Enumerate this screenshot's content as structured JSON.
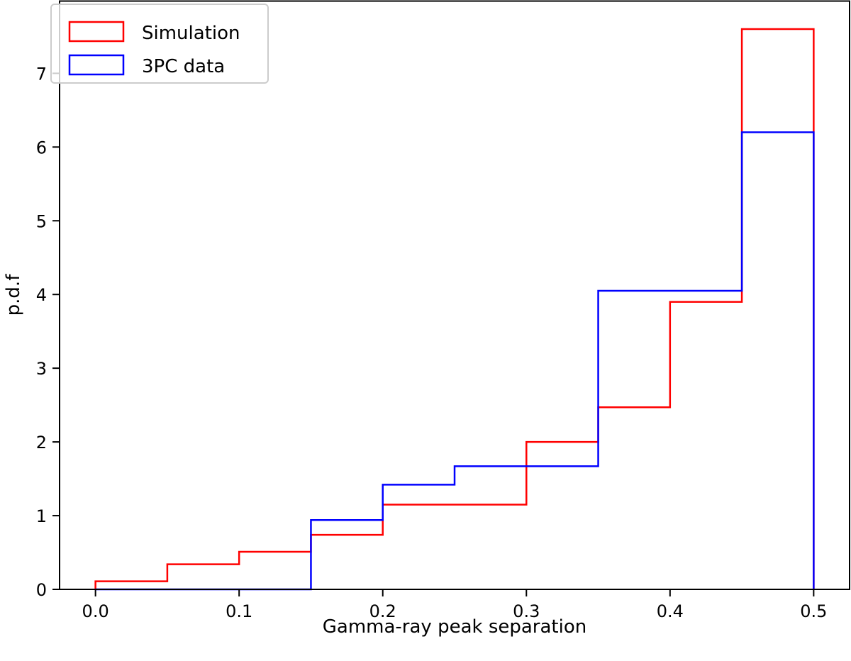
{
  "chart_data": {
    "type": "line",
    "subtype": "step-histogram",
    "xlabel": "Gamma-ray peak separation",
    "ylabel": "p.d.f",
    "xlim": [
      -0.025,
      0.525
    ],
    "ylim": [
      0,
      7.98
    ],
    "xticks": [
      "0.0",
      "0.1",
      "0.2",
      "0.3",
      "0.4",
      "0.5"
    ],
    "xtick_values": [
      0,
      0.1,
      0.2,
      0.3,
      0.4,
      0.5
    ],
    "yticks": [
      "0",
      "1",
      "2",
      "3",
      "4",
      "5",
      "6",
      "7"
    ],
    "ytick_values": [
      0,
      1,
      2,
      3,
      4,
      5,
      6,
      7
    ],
    "grid": false,
    "legend": "top-left",
    "series": [
      {
        "name": "Simulation",
        "color": "#ff0000",
        "bin_edges": [
          0,
          0.05,
          0.1,
          0.15,
          0.2,
          0.25,
          0.3,
          0.35,
          0.4,
          0.45,
          0.5
        ],
        "values": [
          0.11,
          0.34,
          0.51,
          0.74,
          1.15,
          1.15,
          2.0,
          2.47,
          3.9,
          7.6
        ]
      },
      {
        "name": "3PC data",
        "color": "#0000ff",
        "bin_edges": [
          0,
          0.05,
          0.1,
          0.15,
          0.2,
          0.25,
          0.3,
          0.35,
          0.4,
          0.45,
          0.5
        ],
        "values": [
          0,
          0,
          0,
          0.94,
          1.42,
          1.67,
          1.67,
          4.05,
          4.05,
          6.2
        ]
      }
    ]
  }
}
